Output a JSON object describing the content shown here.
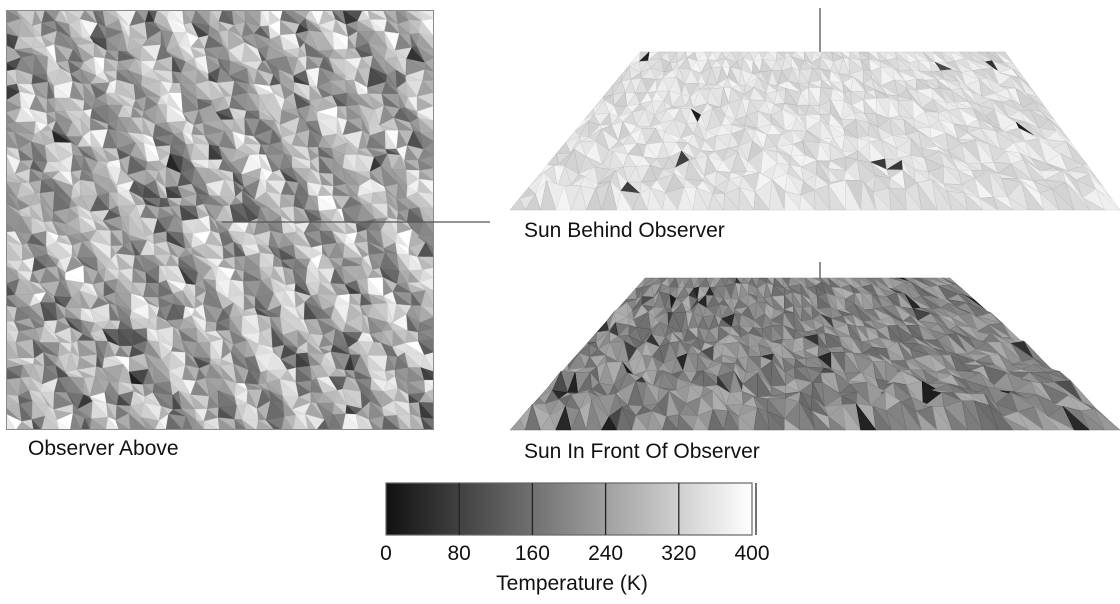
{
  "panels": {
    "top_view": {
      "caption": "Observer Above"
    },
    "behind": {
      "caption": "Sun Behind Observer"
    },
    "front": {
      "caption": "Sun In Front Of Observer"
    }
  },
  "colorbar": {
    "title": "Temperature (K)",
    "min": 0,
    "max": 400,
    "ticks": [
      "0",
      "80",
      "160",
      "240",
      "320",
      "400"
    ],
    "tick_values": [
      0,
      80,
      160,
      240,
      320,
      400
    ],
    "color_low": "#111111",
    "color_high": "#ffffff"
  },
  "colors": {
    "frame": "#8a8a8a",
    "mesh_edge": "#777777",
    "pointer_line": "#555555"
  }
}
